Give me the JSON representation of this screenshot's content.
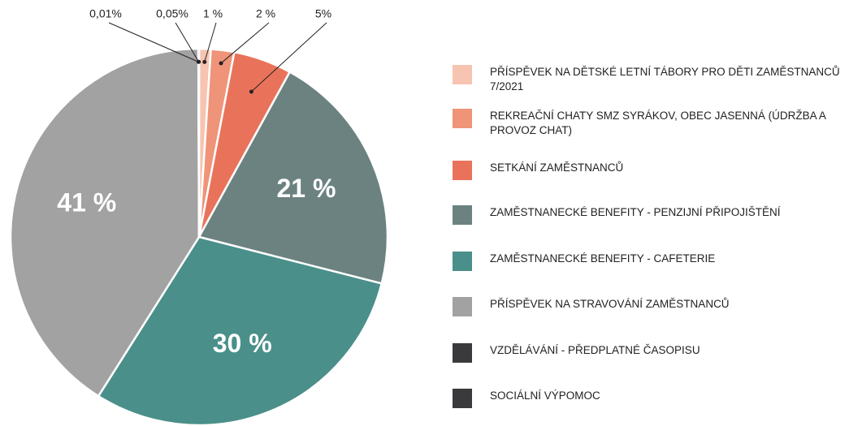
{
  "chart_data": {
    "type": "pie",
    "categories": [
      "PŘÍSPĚVEK NA DĚTSKÉ LETNÍ TÁBORY PRO DĚTI ZAMĚSTNANCŮ 7/2021",
      "REKREAČNÍ CHATY SMZ SYRÁKOV, OBEC JASENNÁ (ÚDRŽBA A PROVOZ CHAT)",
      "SETKÁNÍ ZAMĚSTNANCŮ",
      "ZAMĚSTNANECKÉ BENEFITY - PENZIJNÍ PŘIPOJIŠTĚNÍ",
      "ZAMĚSTNANECKÉ BENEFITY - CAFETERIE",
      "PŘÍSPĚVEK NA STRAVOVÁNÍ ZAMĚSTNANCŮ",
      "VZDĚLÁVÁNÍ - PŘEDPLATNÉ ČASOPISU",
      "SOCIÁLNÍ VÝPOMOC"
    ],
    "values": [
      1,
      2,
      5,
      21,
      30,
      41,
      0.01,
      0.05
    ],
    "value_labels": [
      "1 %",
      "2 %",
      "5%",
      "21 %",
      "30 %",
      "41 %",
      "0,01%",
      "0,05%"
    ],
    "colors": [
      "#f6c4b0",
      "#ef9479",
      "#e9735a",
      "#6b8281",
      "#4a8f8a",
      "#a2a2a2",
      "#3a3a3c",
      "#3a3a3c"
    ],
    "legend": "right"
  }
}
